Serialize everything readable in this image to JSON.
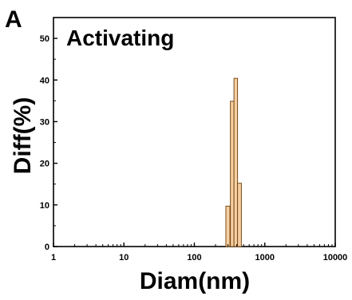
{
  "panel_label": "A",
  "chart_data": {
    "type": "bar",
    "title": "Activating",
    "xlabel": "Diam(nm)",
    "ylabel": "Diff(%)",
    "x_scale": "log",
    "xlim": [
      1,
      10000
    ],
    "ylim": [
      0,
      55
    ],
    "x_ticks": [
      "1",
      "10",
      "100",
      "1000",
      "10000"
    ],
    "y_ticks": [
      "0",
      "10",
      "20",
      "30",
      "40",
      "50"
    ],
    "bars": [
      {
        "x_min": 280,
        "x_max": 320,
        "value": 9.7
      },
      {
        "x_min": 325,
        "x_max": 365,
        "value": 34.9
      },
      {
        "x_min": 365,
        "x_max": 410,
        "value": 40.4
      },
      {
        "x_min": 410,
        "x_max": 465,
        "value": 15.2
      }
    ],
    "bar_color": "#f6cfa3",
    "bar_edge_color": "#7a4a12",
    "grid": false,
    "legend": "none"
  }
}
